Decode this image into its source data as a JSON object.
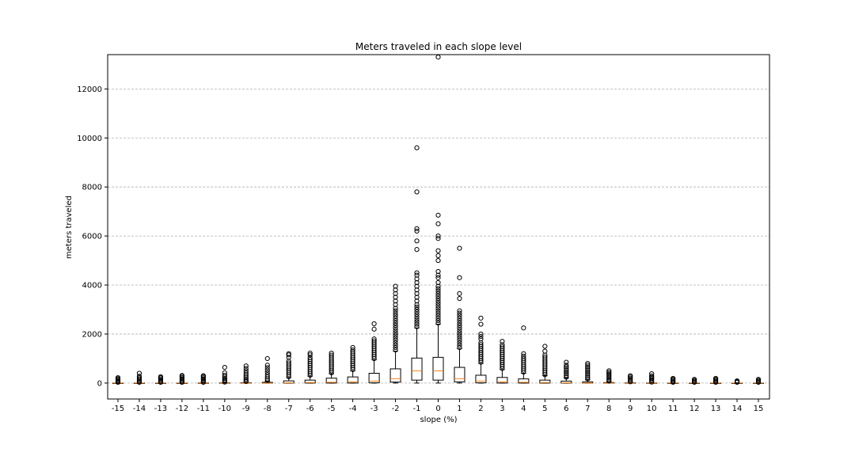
{
  "chart_data": {
    "type": "box",
    "title": "Meters traveled in each slope level",
    "xlabel": "slope (%)",
    "ylabel": "meters traveled",
    "ylim": [
      -650,
      13400
    ],
    "yticks": [
      0,
      2000,
      4000,
      6000,
      8000,
      10000,
      12000
    ],
    "grid": "y, dashed",
    "colors": {
      "box": "#000000",
      "median": "#ff7f0e",
      "grid": "#b0b0b0"
    },
    "categories": [
      "-15",
      "-14",
      "-13",
      "-12",
      "-11",
      "-10",
      "-9",
      "-8",
      "-7",
      "-6",
      "-5",
      "-4",
      "-3",
      "-2",
      "-1",
      "0",
      "1",
      "2",
      "3",
      "4",
      "5",
      "6",
      "7",
      "8",
      "9",
      "10",
      "11",
      "12",
      "13",
      "14",
      "15"
    ],
    "boxes": [
      {
        "q1": 0,
        "median": 0,
        "q3": 0,
        "wlo": 0,
        "whi": 0,
        "outliers": [
          30,
          60,
          100,
          140,
          180,
          220
        ]
      },
      {
        "q1": 0,
        "median": 0,
        "q3": 0,
        "wlo": 0,
        "whi": 0,
        "outliers": [
          30,
          70,
          120,
          170,
          220,
          280,
          400
        ]
      },
      {
        "q1": 0,
        "median": 0,
        "q3": 0,
        "wlo": 0,
        "whi": 0,
        "outliers": [
          30,
          70,
          120,
          170,
          220,
          260
        ]
      },
      {
        "q1": 0,
        "median": 0,
        "q3": 0,
        "wlo": 0,
        "whi": 0,
        "outliers": [
          30,
          70,
          120,
          170,
          220,
          270,
          310
        ]
      },
      {
        "q1": 0,
        "median": 0,
        "q3": 5,
        "wlo": 0,
        "whi": 10,
        "outliers": [
          30,
          70,
          120,
          170,
          220,
          270,
          300
        ]
      },
      {
        "q1": 0,
        "median": 0,
        "q3": 10,
        "wlo": 0,
        "whi": 25,
        "outliers": [
          40,
          80,
          130,
          190,
          250,
          320,
          420,
          640
        ]
      },
      {
        "q1": 0,
        "median": 0,
        "q3": 15,
        "wlo": 0,
        "whi": 40,
        "outliers": [
          60,
          110,
          170,
          240,
          320,
          410,
          500,
          600,
          700
        ]
      },
      {
        "q1": 0,
        "median": 0,
        "q3": 30,
        "wlo": 0,
        "whi": 70,
        "outliers": [
          100,
          170,
          250,
          340,
          430,
          530,
          630,
          730,
          1000
        ]
      },
      {
        "q1": 0,
        "median": 10,
        "q3": 90,
        "wlo": 0,
        "whi": 220,
        "outliers": [
          260,
          340,
          420,
          500,
          580,
          660,
          740,
          820,
          900,
          1050,
          1150,
          1200
        ]
      },
      {
        "q1": 0,
        "median": 20,
        "q3": 120,
        "wlo": 0,
        "whi": 280,
        "outliers": [
          320,
          400,
          480,
          560,
          640,
          720,
          800,
          880,
          960,
          1040,
          1150,
          1220
        ]
      },
      {
        "q1": 0,
        "median": 30,
        "q3": 200,
        "wlo": 0,
        "whi": 380,
        "outliers": [
          420,
          500,
          580,
          660,
          740,
          820,
          900,
          980,
          1060,
          1140,
          1220
        ]
      },
      {
        "q1": 0,
        "median": 50,
        "q3": 250,
        "wlo": 0,
        "whi": 500,
        "outliers": [
          550,
          630,
          710,
          790,
          870,
          950,
          1030,
          1110,
          1190,
          1270,
          1350,
          1450
        ]
      },
      {
        "q1": 10,
        "median": 80,
        "q3": 400,
        "wlo": 0,
        "whi": 950,
        "outliers": [
          1000,
          1080,
          1160,
          1240,
          1320,
          1400,
          1480,
          1560,
          1640,
          1720,
          1800,
          2200,
          2420
        ]
      },
      {
        "q1": 40,
        "median": 180,
        "q3": 580,
        "wlo": 0,
        "whi": 1300,
        "outliers": [
          1350,
          1450,
          1550,
          1650,
          1750,
          1850,
          1950,
          2050,
          2150,
          2250,
          2350,
          2450,
          2550,
          2650,
          2750,
          2850,
          2950,
          3050,
          3200,
          3350,
          3500,
          3650,
          3800,
          3950
        ]
      },
      {
        "q1": 120,
        "median": 500,
        "q3": 1020,
        "wlo": 0,
        "whi": 2250,
        "outliers": [
          2300,
          2400,
          2500,
          2600,
          2700,
          2800,
          2900,
          3000,
          3100,
          3200,
          3350,
          3500,
          3650,
          3800,
          3950,
          4100,
          4250,
          4400,
          4500,
          5450,
          5800,
          6200,
          6300,
          7800,
          9600
        ]
      },
      {
        "q1": 120,
        "median": 500,
        "q3": 1050,
        "wlo": 0,
        "whi": 2400,
        "outliers": [
          2450,
          2550,
          2650,
          2750,
          2850,
          2950,
          3050,
          3150,
          3250,
          3350,
          3450,
          3550,
          3650,
          3750,
          3850,
          3950,
          4100,
          4300,
          4400,
          4550,
          5000,
          5200,
          5400,
          5900,
          6000,
          6500,
          6850,
          13300
        ]
      },
      {
        "q1": 50,
        "median": 180,
        "q3": 640,
        "wlo": 0,
        "whi": 1400,
        "outliers": [
          1450,
          1550,
          1650,
          1750,
          1850,
          1950,
          2050,
          2150,
          2250,
          2350,
          2450,
          2550,
          2650,
          2750,
          2850,
          2950,
          3450,
          3650,
          4300,
          5500
        ]
      },
      {
        "q1": 10,
        "median": 80,
        "q3": 320,
        "wlo": 0,
        "whi": 800,
        "outliers": [
          850,
          930,
          1010,
          1090,
          1170,
          1250,
          1330,
          1410,
          1490,
          1570,
          1650,
          1800,
          1900,
          2000,
          2400,
          2650
        ]
      },
      {
        "q1": 0,
        "median": 50,
        "q3": 230,
        "wlo": 0,
        "whi": 550,
        "outliers": [
          600,
          680,
          760,
          840,
          920,
          1000,
          1080,
          1160,
          1240,
          1320,
          1400,
          1480,
          1560,
          1700
        ]
      },
      {
        "q1": 0,
        "median": 30,
        "q3": 170,
        "wlo": 0,
        "whi": 400,
        "outliers": [
          450,
          530,
          610,
          690,
          770,
          850,
          930,
          1010,
          1100,
          1200,
          2250
        ]
      },
      {
        "q1": 0,
        "median": 20,
        "q3": 120,
        "wlo": 0,
        "whi": 300,
        "outliers": [
          340,
          420,
          500,
          580,
          660,
          740,
          820,
          900,
          980,
          1060,
          1140,
          1300,
          1500
        ]
      },
      {
        "q1": 0,
        "median": 10,
        "q3": 80,
        "wlo": 0,
        "whi": 200,
        "outliers": [
          240,
          310,
          380,
          450,
          520,
          590,
          660,
          730,
          850
        ]
      },
      {
        "q1": 0,
        "median": 5,
        "q3": 50,
        "wlo": 0,
        "whi": 130,
        "outliers": [
          170,
          240,
          310,
          380,
          450,
          520,
          590,
          660,
          730,
          800
        ]
      },
      {
        "q1": 0,
        "median": 0,
        "q3": 20,
        "wlo": 0,
        "whi": 50,
        "outliers": [
          80,
          140,
          200,
          260,
          320,
          380,
          440,
          500
        ]
      },
      {
        "q1": 0,
        "median": 0,
        "q3": 10,
        "wlo": 0,
        "whi": 25,
        "outliers": [
          50,
          100,
          150,
          200,
          250,
          300
        ]
      },
      {
        "q1": 0,
        "median": 0,
        "q3": 5,
        "wlo": 0,
        "whi": 15,
        "outliers": [
          40,
          90,
          140,
          190,
          240,
          290,
          380
        ]
      },
      {
        "q1": 0,
        "median": 0,
        "q3": 0,
        "wlo": 0,
        "whi": 0,
        "outliers": [
          30,
          70,
          110,
          150,
          190
        ]
      },
      {
        "q1": 0,
        "median": 0,
        "q3": 0,
        "wlo": 0,
        "whi": 0,
        "outliers": [
          30,
          70,
          110,
          150
        ]
      },
      {
        "q1": 0,
        "median": 0,
        "q3": 0,
        "wlo": 0,
        "whi": 0,
        "outliers": [
          30,
          70,
          110,
          150,
          190
        ]
      },
      {
        "q1": 0,
        "median": 0,
        "q3": 0,
        "wlo": 0,
        "whi": 0,
        "outliers": [
          30,
          60,
          90
        ]
      },
      {
        "q1": 0,
        "median": 0,
        "q3": 0,
        "wlo": 0,
        "whi": 0,
        "outliers": [
          30,
          70,
          110,
          150
        ]
      }
    ]
  }
}
